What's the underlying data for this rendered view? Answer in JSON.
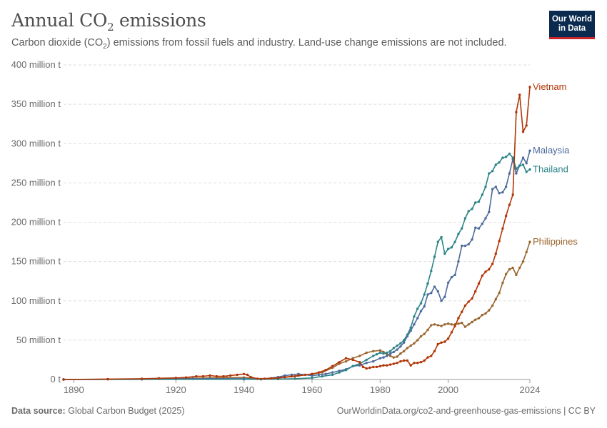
{
  "header": {
    "title_prefix": "Annual CO",
    "title_sub": "2",
    "title_suffix": " emissions",
    "subtitle_a": "Carbon dioxide (CO",
    "subtitle_sub": "2",
    "subtitle_b": ") emissions from fossil fuels and industry. Land-use change emissions are not included."
  },
  "logo": {
    "line1": "Our World",
    "line2": "in Data"
  },
  "footer": {
    "source_label": "Data source:",
    "source_value": "Global Carbon Budget (2025)",
    "url": "OurWorldinData.org/co2-and-greenhouse-gas-emissions | CC BY"
  },
  "colors": {
    "Vietnam": "#b13507",
    "Malaysia": "#4c6a9c",
    "Thailand": "#2d8587",
    "Philippines": "#9a652e",
    "grid": "#dddddd",
    "axis": "#999999"
  },
  "chart_data": {
    "type": "line",
    "title": "Annual CO2 emissions",
    "xlim": [
      1887,
      2024
    ],
    "ylim": [
      0,
      400
    ],
    "grid": true,
    "legend": "end-of-line labels",
    "x_ticks": [
      1890,
      1920,
      1940,
      1960,
      1980,
      2000,
      2024
    ],
    "y_ticks": [
      {
        "v": 0,
        "label": "0 t"
      },
      {
        "v": 50,
        "label": "50 million t"
      },
      {
        "v": 100,
        "label": "100 million t"
      },
      {
        "v": 150,
        "label": "150 million t"
      },
      {
        "v": 200,
        "label": "200 million t"
      },
      {
        "v": 250,
        "label": "250 million t"
      },
      {
        "v": 300,
        "label": "300 million t"
      },
      {
        "v": 350,
        "label": "350 million t"
      },
      {
        "v": 400,
        "label": "400 million t"
      }
    ],
    "series": [
      {
        "name": "Philippines",
        "points": [
          [
            1887,
            0
          ],
          [
            1900,
            0.3
          ],
          [
            1910,
            0.6
          ],
          [
            1920,
            1
          ],
          [
            1925,
            1.5
          ],
          [
            1930,
            2
          ],
          [
            1935,
            2.2
          ],
          [
            1940,
            2.5
          ],
          [
            1945,
            0.5
          ],
          [
            1950,
            2
          ],
          [
            1955,
            4
          ],
          [
            1960,
            7
          ],
          [
            1963,
            9
          ],
          [
            1966,
            15
          ],
          [
            1968,
            20
          ],
          [
            1970,
            23
          ],
          [
            1972,
            27
          ],
          [
            1974,
            30
          ],
          [
            1976,
            34
          ],
          [
            1978,
            36
          ],
          [
            1980,
            37
          ],
          [
            1981,
            35
          ],
          [
            1982,
            32
          ],
          [
            1983,
            30
          ],
          [
            1984,
            28
          ],
          [
            1985,
            29
          ],
          [
            1986,
            33
          ],
          [
            1987,
            36
          ],
          [
            1988,
            40
          ],
          [
            1989,
            43
          ],
          [
            1990,
            46
          ],
          [
            1991,
            50
          ],
          [
            1992,
            55
          ],
          [
            1993,
            58
          ],
          [
            1994,
            63
          ],
          [
            1995,
            69
          ],
          [
            1996,
            70
          ],
          [
            1997,
            69
          ],
          [
            1998,
            68
          ],
          [
            1999,
            70
          ],
          [
            2000,
            71
          ],
          [
            2001,
            70
          ],
          [
            2002,
            70
          ],
          [
            2003,
            71
          ],
          [
            2004,
            72
          ],
          [
            2005,
            67
          ],
          [
            2006,
            70
          ],
          [
            2007,
            73
          ],
          [
            2008,
            76
          ],
          [
            2009,
            78
          ],
          [
            2010,
            82
          ],
          [
            2011,
            84
          ],
          [
            2012,
            88
          ],
          [
            2013,
            94
          ],
          [
            2014,
            102
          ],
          [
            2015,
            110
          ],
          [
            2016,
            123
          ],
          [
            2017,
            134
          ],
          [
            2018,
            140
          ],
          [
            2019,
            142
          ],
          [
            2020,
            133
          ],
          [
            2021,
            142
          ],
          [
            2022,
            150
          ],
          [
            2023,
            162
          ],
          [
            2024,
            175
          ]
        ]
      },
      {
        "name": "Malaysia",
        "points": [
          [
            1887,
            0
          ],
          [
            1910,
            0.3
          ],
          [
            1920,
            0.6
          ],
          [
            1925,
            0.8
          ],
          [
            1930,
            1
          ],
          [
            1940,
            1
          ],
          [
            1945,
            0.5
          ],
          [
            1950,
            3
          ],
          [
            1952,
            5
          ],
          [
            1954,
            6
          ],
          [
            1956,
            7
          ],
          [
            1960,
            5
          ],
          [
            1962,
            6
          ],
          [
            1964,
            7
          ],
          [
            1966,
            9
          ],
          [
            1968,
            11
          ],
          [
            1970,
            13
          ],
          [
            1972,
            17
          ],
          [
            1974,
            18
          ],
          [
            1976,
            21
          ],
          [
            1978,
            23
          ],
          [
            1980,
            27
          ],
          [
            1981,
            28
          ],
          [
            1982,
            30
          ],
          [
            1983,
            33
          ],
          [
            1984,
            35
          ],
          [
            1985,
            38
          ],
          [
            1986,
            42
          ],
          [
            1987,
            47
          ],
          [
            1988,
            55
          ],
          [
            1989,
            62
          ],
          [
            1990,
            70
          ],
          [
            1991,
            78
          ],
          [
            1992,
            87
          ],
          [
            1993,
            93
          ],
          [
            1994,
            108
          ],
          [
            1995,
            110
          ],
          [
            1996,
            118
          ],
          [
            1997,
            112
          ],
          [
            1998,
            100
          ],
          [
            1999,
            105
          ],
          [
            2000,
            123
          ],
          [
            2001,
            130
          ],
          [
            2002,
            133
          ],
          [
            2003,
            150
          ],
          [
            2004,
            170
          ],
          [
            2005,
            170
          ],
          [
            2006,
            172
          ],
          [
            2007,
            178
          ],
          [
            2008,
            193
          ],
          [
            2009,
            192
          ],
          [
            2010,
            198
          ],
          [
            2011,
            205
          ],
          [
            2012,
            213
          ],
          [
            2013,
            242
          ],
          [
            2014,
            245
          ],
          [
            2015,
            237
          ],
          [
            2016,
            238
          ],
          [
            2017,
            245
          ],
          [
            2018,
            262
          ],
          [
            2019,
            280
          ],
          [
            2020,
            262
          ],
          [
            2021,
            272
          ],
          [
            2022,
            282
          ],
          [
            2023,
            275
          ],
          [
            2024,
            291
          ]
        ]
      },
      {
        "name": "Thailand",
        "points": [
          [
            1887,
            0
          ],
          [
            1940,
            0.3
          ],
          [
            1945,
            0.2
          ],
          [
            1950,
            0.5
          ],
          [
            1955,
            1
          ],
          [
            1960,
            2
          ],
          [
            1963,
            4
          ],
          [
            1966,
            6
          ],
          [
            1968,
            9
          ],
          [
            1970,
            12
          ],
          [
            1972,
            17
          ],
          [
            1974,
            20
          ],
          [
            1976,
            25
          ],
          [
            1978,
            30
          ],
          [
            1979,
            32
          ],
          [
            1980,
            34
          ],
          [
            1981,
            33
          ],
          [
            1982,
            34
          ],
          [
            1983,
            36
          ],
          [
            1984,
            40
          ],
          [
            1985,
            43
          ],
          [
            1986,
            46
          ],
          [
            1987,
            50
          ],
          [
            1988,
            57
          ],
          [
            1989,
            66
          ],
          [
            1990,
            80
          ],
          [
            1991,
            90
          ],
          [
            1992,
            97
          ],
          [
            1993,
            108
          ],
          [
            1994,
            122
          ],
          [
            1995,
            138
          ],
          [
            1996,
            156
          ],
          [
            1997,
            175
          ],
          [
            1998,
            181
          ],
          [
            1999,
            160
          ],
          [
            2000,
            166
          ],
          [
            2001,
            168
          ],
          [
            2002,
            175
          ],
          [
            2003,
            185
          ],
          [
            2004,
            192
          ],
          [
            2005,
            205
          ],
          [
            2006,
            214
          ],
          [
            2007,
            217
          ],
          [
            2008,
            225
          ],
          [
            2009,
            226
          ],
          [
            2010,
            235
          ],
          [
            2011,
            245
          ],
          [
            2012,
            262
          ],
          [
            2013,
            265
          ],
          [
            2014,
            273
          ],
          [
            2015,
            276
          ],
          [
            2016,
            282
          ],
          [
            2017,
            283
          ],
          [
            2018,
            287
          ],
          [
            2019,
            282
          ],
          [
            2020,
            268
          ],
          [
            2021,
            272
          ],
          [
            2022,
            273
          ],
          [
            2023,
            264
          ],
          [
            2024,
            267
          ]
        ]
      },
      {
        "name": "Vietnam",
        "points": [
          [
            1887,
            0
          ],
          [
            1900,
            0.5
          ],
          [
            1910,
            1
          ],
          [
            1915,
            1.5
          ],
          [
            1920,
            2
          ],
          [
            1923,
            2.5
          ],
          [
            1926,
            4
          ],
          [
            1928,
            4
          ],
          [
            1930,
            5
          ],
          [
            1932,
            4
          ],
          [
            1934,
            4
          ],
          [
            1936,
            5
          ],
          [
            1938,
            6
          ],
          [
            1940,
            7
          ],
          [
            1941,
            6
          ],
          [
            1942,
            3
          ],
          [
            1944,
            1
          ],
          [
            1946,
            1
          ],
          [
            1948,
            1.5
          ],
          [
            1950,
            2
          ],
          [
            1952,
            3
          ],
          [
            1954,
            4
          ],
          [
            1956,
            5
          ],
          [
            1958,
            6
          ],
          [
            1960,
            7
          ],
          [
            1962,
            9
          ],
          [
            1964,
            12
          ],
          [
            1966,
            17
          ],
          [
            1968,
            22
          ],
          [
            1970,
            27
          ],
          [
            1972,
            25
          ],
          [
            1974,
            22
          ],
          [
            1975,
            16
          ],
          [
            1976,
            14
          ],
          [
            1977,
            15
          ],
          [
            1978,
            16
          ],
          [
            1979,
            16
          ],
          [
            1980,
            17
          ],
          [
            1981,
            18
          ],
          [
            1982,
            18
          ],
          [
            1983,
            19
          ],
          [
            1984,
            20
          ],
          [
            1985,
            21
          ],
          [
            1986,
            23
          ],
          [
            1987,
            24
          ],
          [
            1988,
            24
          ],
          [
            1989,
            18
          ],
          [
            1990,
            21
          ],
          [
            1991,
            21
          ],
          [
            1992,
            22
          ],
          [
            1993,
            24
          ],
          [
            1994,
            28
          ],
          [
            1995,
            30
          ],
          [
            1996,
            36
          ],
          [
            1997,
            45
          ],
          [
            1998,
            47
          ],
          [
            1999,
            48
          ],
          [
            2000,
            52
          ],
          [
            2001,
            60
          ],
          [
            2002,
            68
          ],
          [
            2003,
            78
          ],
          [
            2004,
            86
          ],
          [
            2005,
            94
          ],
          [
            2006,
            99
          ],
          [
            2007,
            103
          ],
          [
            2008,
            112
          ],
          [
            2009,
            122
          ],
          [
            2010,
            132
          ],
          [
            2011,
            137
          ],
          [
            2012,
            140
          ],
          [
            2013,
            147
          ],
          [
            2014,
            160
          ],
          [
            2015,
            176
          ],
          [
            2016,
            192
          ],
          [
            2017,
            208
          ],
          [
            2018,
            222
          ],
          [
            2019,
            235
          ],
          [
            2020,
            340
          ],
          [
            2021,
            362
          ],
          [
            2022,
            315
          ],
          [
            2023,
            323
          ],
          [
            2024,
            372
          ]
        ]
      }
    ]
  }
}
